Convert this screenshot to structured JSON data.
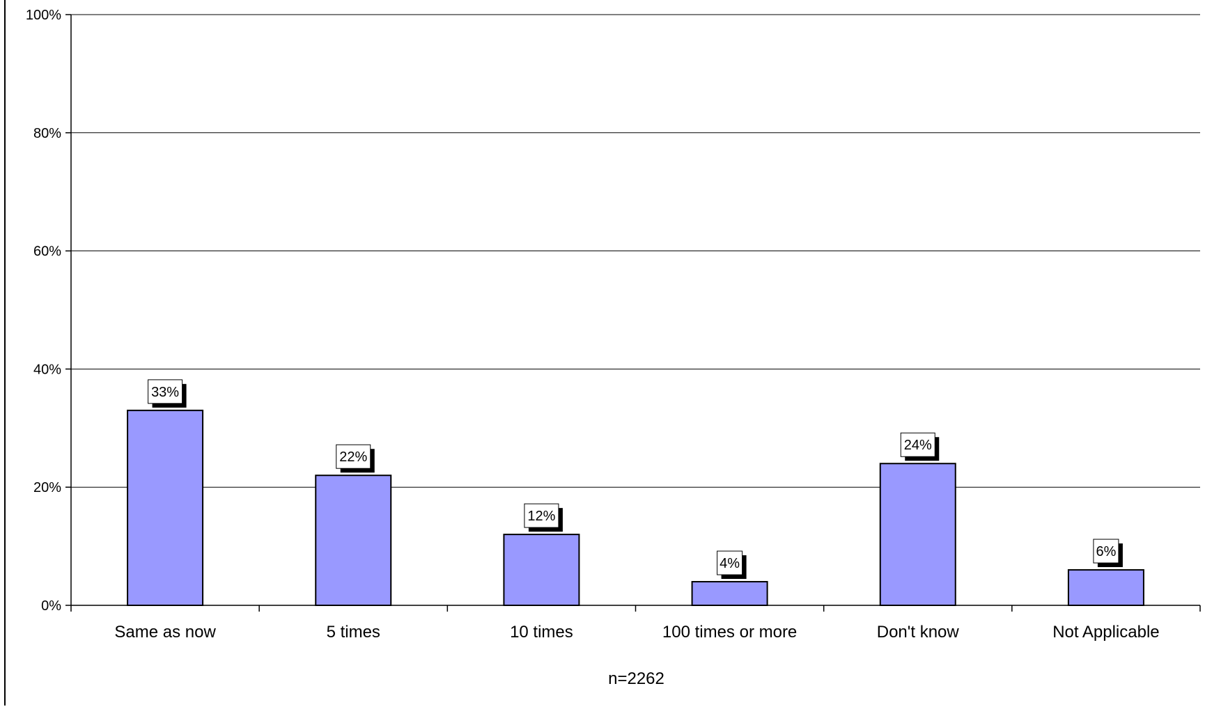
{
  "chart_data": {
    "type": "bar",
    "categories": [
      "Same as now",
      "5 times",
      "10 times",
      "100 times or more",
      "Don't know",
      "Not Applicable"
    ],
    "values": [
      33,
      22,
      12,
      4,
      24,
      6
    ],
    "data_labels": [
      "33%",
      "22%",
      "12%",
      "4%",
      "24%",
      "6%"
    ],
    "ylim": [
      0,
      100
    ],
    "yticks": [
      0,
      20,
      40,
      60,
      80,
      100
    ],
    "ytick_labels": [
      "0%",
      "20%",
      "40%",
      "60%",
      "80%",
      "100%"
    ],
    "note": "n=2262",
    "grid": true,
    "legend": "none",
    "colors": {
      "bar_fill": "#9999ff",
      "bar_stroke": "#000000",
      "grid": "#000000"
    }
  }
}
